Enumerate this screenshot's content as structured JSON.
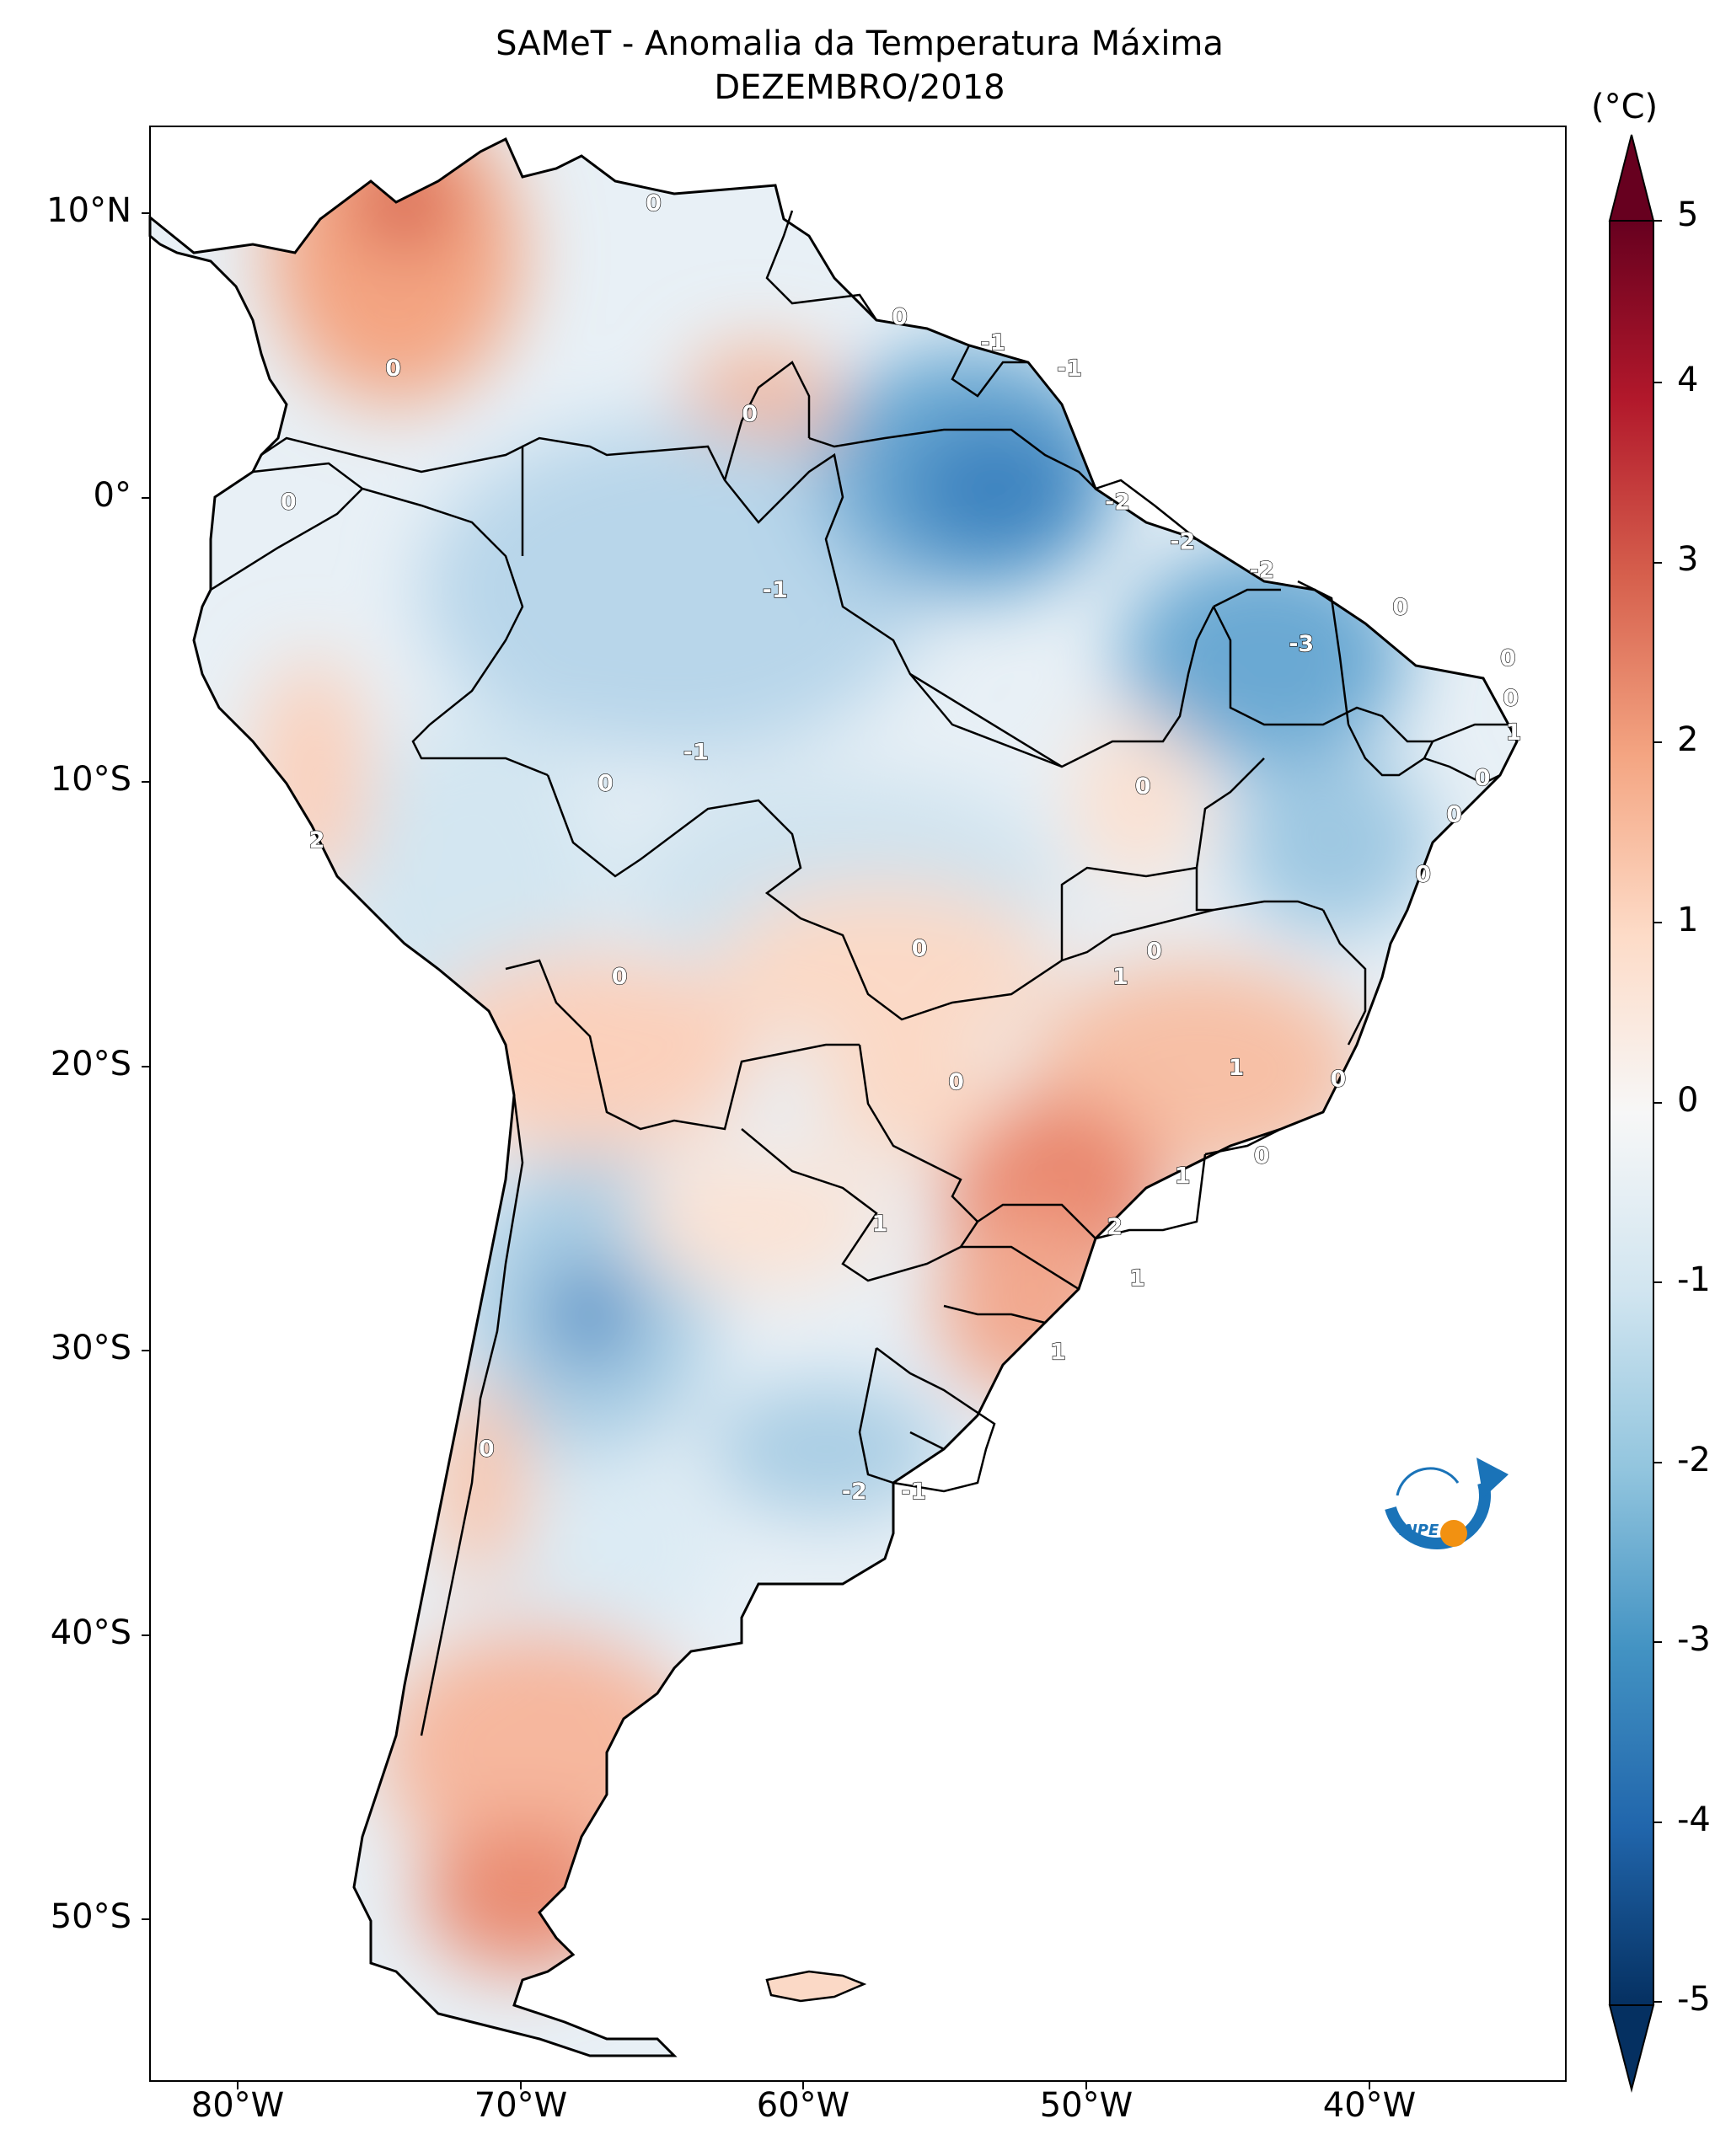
{
  "title_line1": "SAMeT - Anomalia da Temperatura Máxima",
  "title_line2": "DEZEMBRO/2018",
  "unit_label": "(°C)",
  "lat_labels": [
    "10°N",
    "0°",
    "10°S",
    "20°S",
    "30°S",
    "40°S",
    "50°S"
  ],
  "lon_labels": [
    "80°W",
    "70°W",
    "60°W",
    "50°W",
    "40°W"
  ],
  "colorbar": {
    "ticks": [
      "5",
      "4",
      "3",
      "2",
      "1",
      "0",
      "-1",
      "-2",
      "-3",
      "-4",
      "-5"
    ],
    "colors": [
      "#67001f",
      "#b2182b",
      "#d6604d",
      "#f4a582",
      "#fddbc7",
      "#f7f7f7",
      "#d1e5f0",
      "#92c5de",
      "#4393c3",
      "#2166ac",
      "#053061"
    ]
  },
  "contour_labels": [
    {
      "text": "0",
      "lon": -65.3,
      "lat": 10.4
    },
    {
      "text": "0",
      "lon": -74.5,
      "lat": 4.6
    },
    {
      "text": "0",
      "lon": -61.9,
      "lat": 3.0
    },
    {
      "text": "0",
      "lon": -56.6,
      "lat": 6.4
    },
    {
      "text": "-1",
      "lon": -53.3,
      "lat": 5.5
    },
    {
      "text": "-1",
      "lon": -50.6,
      "lat": 4.6
    },
    {
      "text": "0",
      "lon": -78.2,
      "lat": -0.1
    },
    {
      "text": "-2",
      "lon": -48.9,
      "lat": -0.1
    },
    {
      "text": "-2",
      "lon": -46.6,
      "lat": -1.5
    },
    {
      "text": "-2",
      "lon": -43.8,
      "lat": -2.5
    },
    {
      "text": "-1",
      "lon": -61.0,
      "lat": -3.2
    },
    {
      "text": "0",
      "lon": -38.9,
      "lat": -3.8
    },
    {
      "text": "-3",
      "lon": -42.4,
      "lat": -5.1
    },
    {
      "text": "0",
      "lon": -35.1,
      "lat": -5.6
    },
    {
      "text": "0",
      "lon": -35.0,
      "lat": -7.0
    },
    {
      "text": "1",
      "lon": -34.9,
      "lat": -8.2
    },
    {
      "text": "-1",
      "lon": -63.8,
      "lat": -8.9
    },
    {
      "text": "0",
      "lon": -67.0,
      "lat": -10.0
    },
    {
      "text": "0",
      "lon": -48.0,
      "lat": -10.1
    },
    {
      "text": "0",
      "lon": -36.0,
      "lat": -9.8
    },
    {
      "text": "0",
      "lon": -37.0,
      "lat": -11.1
    },
    {
      "text": "2",
      "lon": -77.2,
      "lat": -12.0
    },
    {
      "text": "0",
      "lon": -38.1,
      "lat": -13.2
    },
    {
      "text": "0",
      "lon": -55.9,
      "lat": -15.8
    },
    {
      "text": "0",
      "lon": -47.6,
      "lat": -15.9
    },
    {
      "text": "1",
      "lon": -48.8,
      "lat": -16.8
    },
    {
      "text": "0",
      "lon": -66.5,
      "lat": -16.8
    },
    {
      "text": "1",
      "lon": -44.7,
      "lat": -20.0
    },
    {
      "text": "0",
      "lon": -41.1,
      "lat": -20.4
    },
    {
      "text": "0",
      "lon": -54.6,
      "lat": -20.5
    },
    {
      "text": "0",
      "lon": -43.8,
      "lat": -23.1
    },
    {
      "text": "1",
      "lon": -46.6,
      "lat": -23.8
    },
    {
      "text": "2",
      "lon": -49.0,
      "lat": -25.6
    },
    {
      "text": "1",
      "lon": -57.3,
      "lat": -25.5
    },
    {
      "text": "1",
      "lon": -48.2,
      "lat": -27.4
    },
    {
      "text": "1",
      "lon": -51.0,
      "lat": -30.0
    },
    {
      "text": "0",
      "lon": -71.2,
      "lat": -33.4
    },
    {
      "text": "-2",
      "lon": -58.2,
      "lat": -34.9
    },
    {
      "text": "-1",
      "lon": -56.1,
      "lat": -34.9
    }
  ]
}
